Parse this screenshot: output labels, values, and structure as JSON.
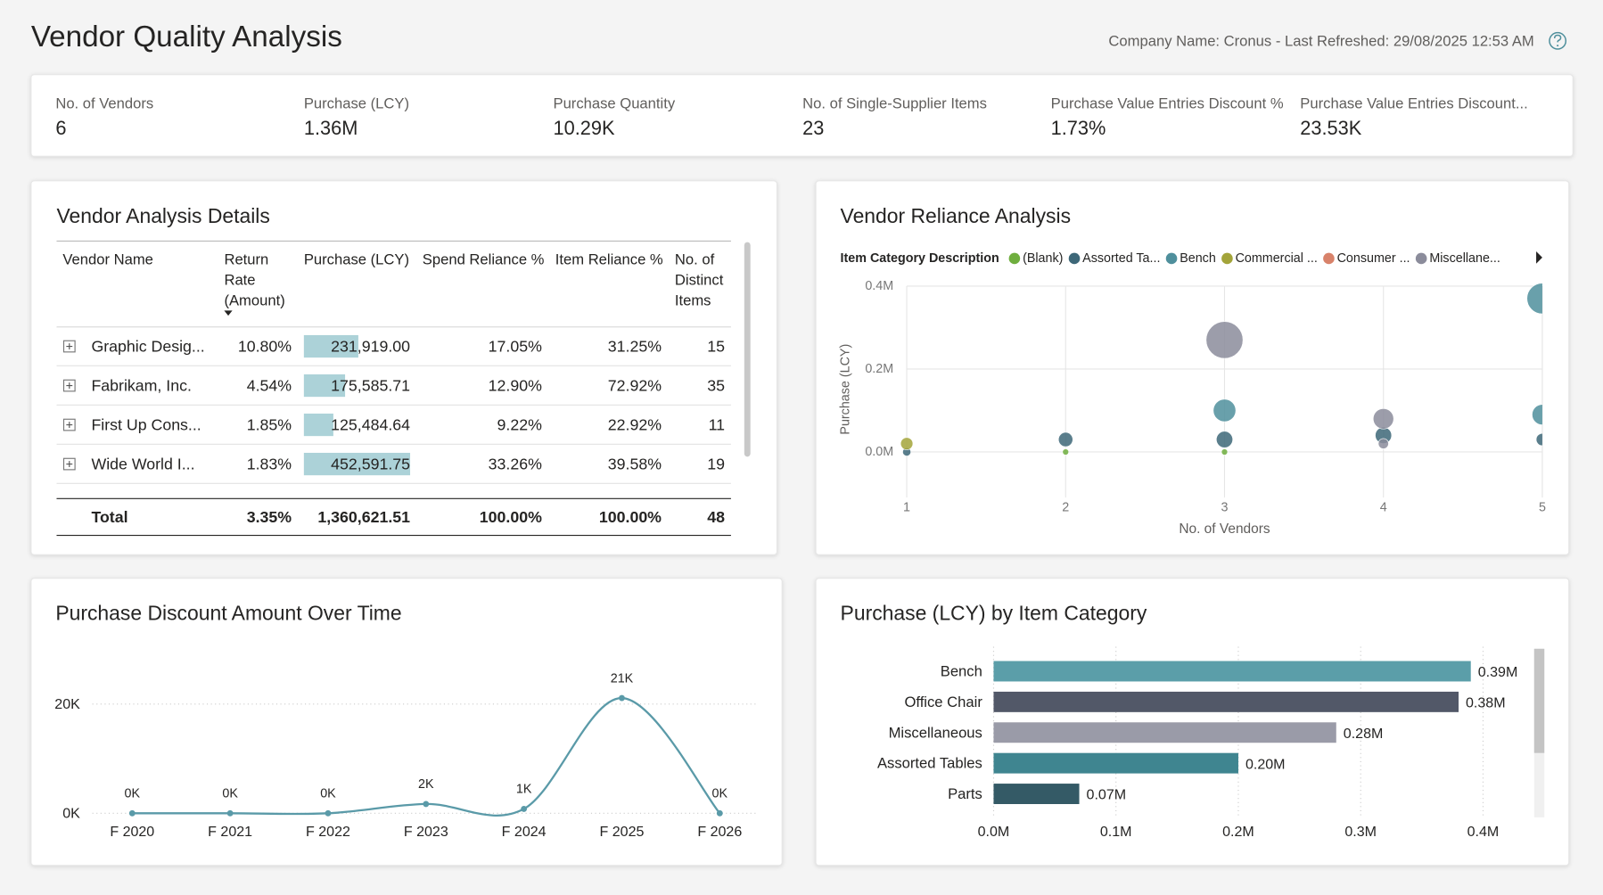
{
  "header": {
    "title": "Vendor Quality Analysis",
    "info": "Company Name: Cronus - Last Refreshed: 29/08/2025 12:53 AM"
  },
  "kpis": [
    {
      "label": "No. of Vendors",
      "value": "6"
    },
    {
      "label": "Purchase (LCY)",
      "value": "1.36M"
    },
    {
      "label": "Purchase Quantity",
      "value": "10.29K"
    },
    {
      "label": "No. of Single-Supplier Items",
      "value": "23"
    },
    {
      "label": "Purchase Value Entries Discount %",
      "value": "1.73%"
    },
    {
      "label": "Purchase Value Entries Discount...",
      "value": "23.53K"
    }
  ],
  "table": {
    "title": "Vendor Analysis Details",
    "columns": [
      [
        "Vendor Name"
      ],
      [
        "Return",
        "Rate",
        "(Amount)"
      ],
      [
        "Purchase (LCY)"
      ],
      [
        "Spend Reliance %"
      ],
      [
        "Item Reliance %"
      ],
      [
        "No. of",
        "Distinct",
        "Items"
      ]
    ],
    "rows": [
      [
        "Graphic Desig...",
        "10.80%",
        "231,919.00",
        "17.05%",
        "31.25%",
        "15"
      ],
      [
        "Fabrikam, Inc.",
        "4.54%",
        "175,585.71",
        "12.90%",
        "72.92%",
        "35"
      ],
      [
        "First Up Cons...",
        "1.85%",
        "125,484.64",
        "9.22%",
        "22.92%",
        "11"
      ],
      [
        "Wide World I...",
        "1.83%",
        "452,591.75",
        "33.26%",
        "39.58%",
        "19"
      ]
    ],
    "total": [
      "Total",
      "3.35%",
      "1,360,621.51",
      "100.00%",
      "100.00%",
      "48"
    ]
  },
  "chart_data": [
    {
      "type": "scatter",
      "title": "Vendor Reliance Analysis",
      "legend_title": "Item Category Description",
      "x_label": "No. of Vendors",
      "y_label": "Purchase (LCY)",
      "xlim": [
        1,
        5
      ],
      "xticks": [
        1,
        2,
        3,
        4,
        5
      ],
      "ylim": [
        -0.11,
        0.4
      ],
      "yticks": [
        {
          "value": 0,
          "label": "0.0M"
        },
        {
          "value": 0.2,
          "label": "0.2M"
        },
        {
          "value": 0.4,
          "label": "0.4M"
        }
      ],
      "grid": true,
      "series": [
        {
          "name": "(Blank)",
          "color": "#6fae3e",
          "x": [
            2,
            3
          ],
          "y": [
            0,
            0
          ],
          "size": [
            3,
            3
          ]
        },
        {
          "name": "Assorted Ta...",
          "color": "#3d6778",
          "x": [
            1,
            2,
            3,
            4,
            5
          ],
          "y": [
            0,
            0.03,
            0.03,
            0.04,
            0.03
          ],
          "size": [
            4,
            7,
            8,
            8,
            6
          ]
        },
        {
          "name": "Bench",
          "color": "#4f8f9c",
          "x": [
            3,
            5,
            5
          ],
          "y": [
            0.1,
            0.09,
            0.37
          ],
          "size": [
            11,
            10,
            15
          ]
        },
        {
          "name": "Commercial ...",
          "color": "#a3a43a",
          "x": [
            1
          ],
          "y": [
            0.02
          ],
          "size": [
            6
          ]
        },
        {
          "name": "Consumer ...",
          "color": "#d8826a",
          "x": [],
          "y": [],
          "size": []
        },
        {
          "name": "Miscellane...",
          "color": "#8b8c9b",
          "x": [
            3,
            4,
            4
          ],
          "y": [
            0.27,
            0.08,
            0.02
          ],
          "size": [
            18,
            10,
            5
          ]
        }
      ]
    },
    {
      "type": "line",
      "title": "Purchase Discount Amount Over Time",
      "categories": [
        "F 2020",
        "F 2021",
        "F 2022",
        "F 2023",
        "F 2024",
        "F 2025",
        "F 2026"
      ],
      "values": [
        0,
        0,
        0,
        1700,
        800,
        21100,
        0
      ],
      "value_labels": [
        "0K",
        "0K",
        "0K",
        "2K",
        "1K",
        "21K",
        "0K"
      ],
      "color": "#5a9aa8",
      "ylim": [
        0,
        29000
      ],
      "yticks": [
        {
          "value": 0,
          "label": "0K"
        },
        {
          "value": 20000,
          "label": "20K"
        }
      ],
      "grid": true
    },
    {
      "type": "hbar",
      "title": "Purchase (LCY) by Item Category",
      "categories": [
        "Bench",
        "Office Chair",
        "Miscellaneous",
        "Assorted Tables",
        "Parts"
      ],
      "values": [
        0.39,
        0.38,
        0.28,
        0.2,
        0.07
      ],
      "value_labels": [
        "0.39M",
        "0.38M",
        "0.28M",
        "0.20M",
        "0.07M"
      ],
      "colors": [
        "#5b9ea9",
        "#525868",
        "#9a9ba8",
        "#3f8590",
        "#345a66"
      ],
      "xlim": [
        0,
        0.4
      ],
      "xticks": [
        {
          "value": 0,
          "label": "0.0M"
        },
        {
          "value": 0.1,
          "label": "0.1M"
        },
        {
          "value": 0.2,
          "label": "0.2M"
        },
        {
          "value": 0.3,
          "label": "0.3M"
        },
        {
          "value": 0.4,
          "label": "0.4M"
        }
      ],
      "grid": true
    }
  ]
}
